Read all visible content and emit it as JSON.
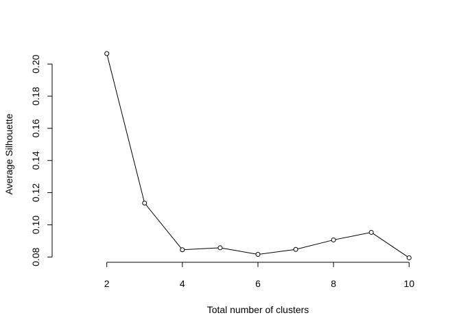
{
  "chart_data": {
    "type": "line",
    "title": "",
    "xlabel": "Total number of clusters",
    "ylabel": "Average Silhouette",
    "x": [
      2,
      3,
      4,
      5,
      6,
      7,
      8,
      9,
      10
    ],
    "series": [
      {
        "values": [
          0.2065,
          0.1135,
          0.0845,
          0.0857,
          0.0816,
          0.0847,
          0.0906,
          0.0953,
          0.0795
        ],
        "color": "#000000",
        "marker": "open-circle",
        "line": "solid"
      }
    ],
    "xticks": [
      2,
      4,
      6,
      8,
      10
    ],
    "xtick_labels": [
      "2",
      "4",
      "6",
      "8",
      "10"
    ],
    "yticks": [
      0.08,
      0.1,
      0.12,
      0.14,
      0.16,
      0.18,
      0.2
    ],
    "ytick_labels": [
      "0.08",
      "0.10",
      "0.12",
      "0.14",
      "0.16",
      "0.18",
      "0.20"
    ],
    "xlim": [
      1.28,
      10.72
    ],
    "ylim": [
      0.0767,
      0.2112
    ],
    "grid": false,
    "legend": "none"
  }
}
